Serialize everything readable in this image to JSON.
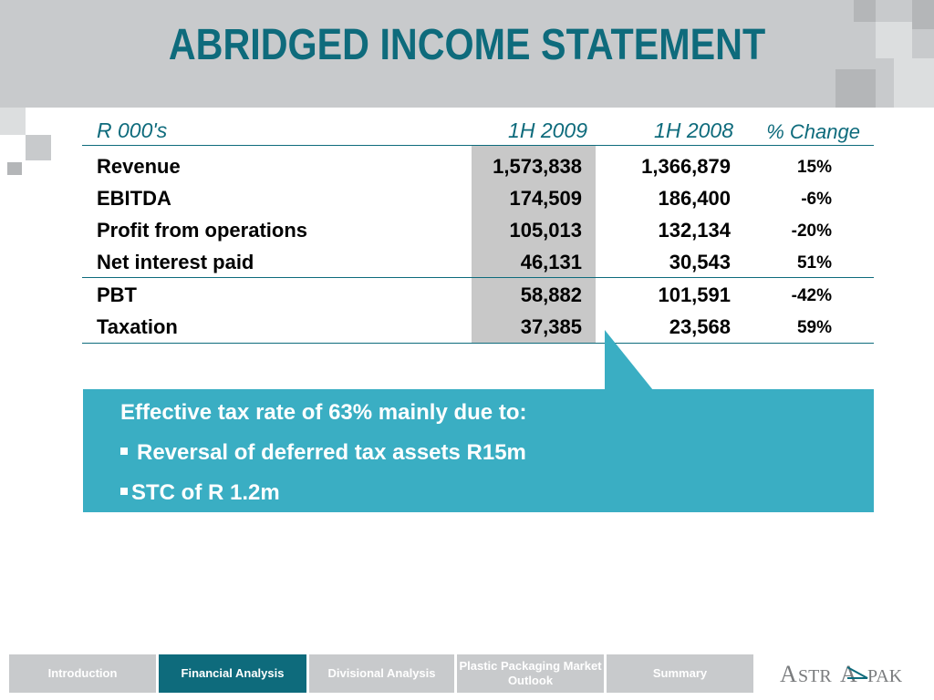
{
  "page": {
    "title": "ABRIDGED INCOME STATEMENT"
  },
  "table": {
    "headers": {
      "label": "R 000's",
      "h1_2009": "1H 2009",
      "h1_2008": "1H 2008",
      "pct": "% Change"
    },
    "rows": [
      {
        "label": "Revenue",
        "h1_2009": "1,573,838",
        "h1_2008": "1,366,879",
        "pct": "15%"
      },
      {
        "label": "EBITDA",
        "h1_2009": "174,509",
        "h1_2008": "186,400",
        "pct": "-6%"
      },
      {
        "label": "Profit from operations",
        "h1_2009": "105,013",
        "h1_2008": "132,134",
        "pct": "-20%"
      },
      {
        "label": "Net interest paid",
        "h1_2009": "46,131",
        "h1_2008": "30,543",
        "pct": "51%"
      },
      {
        "label": "PBT",
        "h1_2009": "58,882",
        "h1_2008": "101,591",
        "pct": "-42%"
      },
      {
        "label": "Taxation",
        "h1_2009": "37,385",
        "h1_2008": "23,568",
        "pct": "59%"
      }
    ]
  },
  "callout": {
    "heading": "Effective tax rate of 63% mainly due to:",
    "bullets": [
      "Reversal of deferred tax assets R15m",
      "STC of R 1.2m"
    ]
  },
  "nav": {
    "items": [
      {
        "label": "Introduction"
      },
      {
        "label": "Financial Analysis"
      },
      {
        "label": "Divisional Analysis"
      },
      {
        "label": "Plastic Packaging Market Outlook"
      },
      {
        "label": "Summary"
      }
    ],
    "active": "Financial Analysis"
  },
  "logo": {
    "text": "ASTRAPAK"
  },
  "colors": {
    "accent": "#0e6b7c",
    "callout": "#3aaec3",
    "band": "#c8cacc",
    "shade": "#c8c8c8"
  }
}
